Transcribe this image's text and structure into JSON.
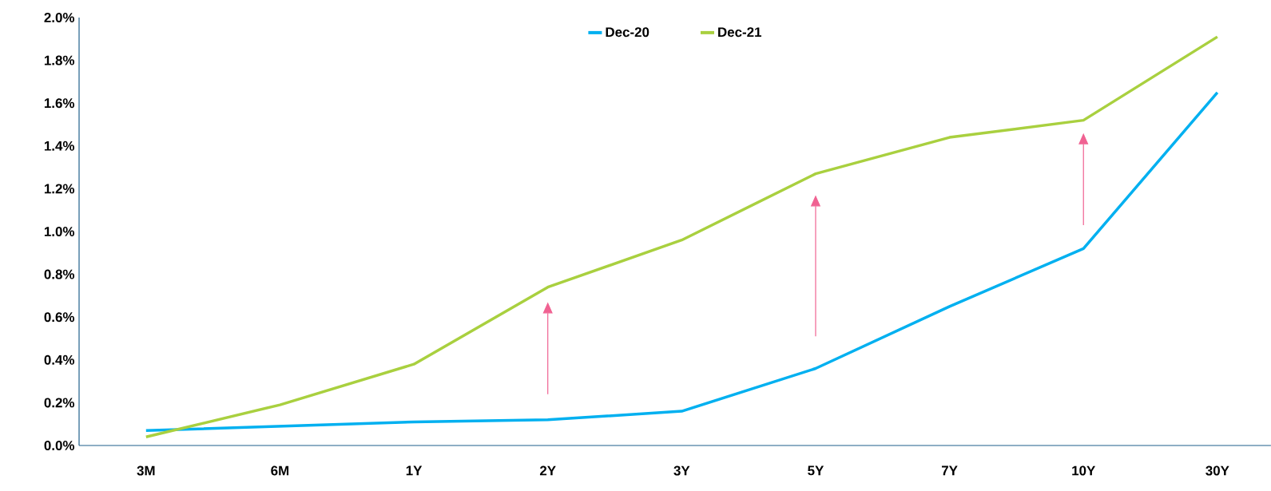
{
  "chart_data": {
    "type": "line",
    "categories": [
      "3M",
      "6M",
      "1Y",
      "2Y",
      "3Y",
      "5Y",
      "7Y",
      "10Y",
      "30Y"
    ],
    "series": [
      {
        "name": "Dec-20",
        "color": "#00b0f0",
        "values": [
          0.07,
          0.09,
          0.11,
          0.12,
          0.16,
          0.36,
          0.65,
          0.92,
          1.65
        ]
      },
      {
        "name": "Dec-21",
        "color": "#a9d03f",
        "values": [
          0.04,
          0.19,
          0.38,
          0.74,
          0.96,
          1.27,
          1.44,
          1.52,
          1.91
        ]
      }
    ],
    "ylim": [
      0,
      2.0
    ],
    "yticks": [
      {
        "value": 0,
        "label": "0.0%"
      },
      {
        "value": 0.2,
        "label": "0.2%"
      },
      {
        "value": 0.4,
        "label": "0.4%"
      },
      {
        "value": 0.6,
        "label": "0.6%"
      },
      {
        "value": 0.8,
        "label": "0.8%"
      },
      {
        "value": 1.0,
        "label": "1.0%"
      },
      {
        "value": 1.2,
        "label": "1.2%"
      },
      {
        "value": 1.4,
        "label": "1.4%"
      },
      {
        "value": 1.6,
        "label": "1.6%"
      },
      {
        "value": 1.8,
        "label": "1.8%"
      },
      {
        "value": 2.0,
        "label": "2.0%"
      }
    ],
    "legend": "top",
    "grid": false,
    "marker": "none",
    "line_style": "solid"
  }
}
